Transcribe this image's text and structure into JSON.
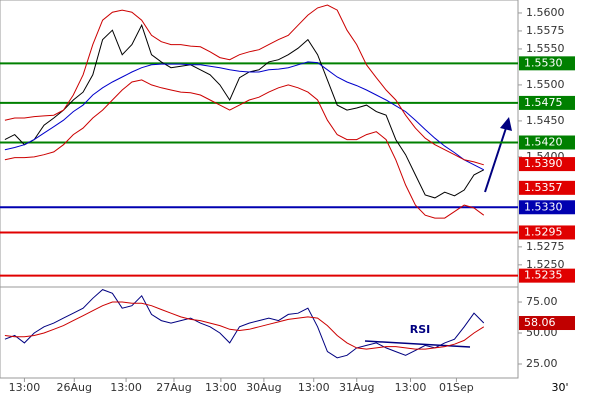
{
  "chart_data": [
    {
      "type": "line",
      "x": [
        0,
        1,
        2,
        3,
        4,
        5,
        6,
        7,
        8,
        9,
        10,
        11,
        12,
        13,
        14,
        15,
        16,
        17,
        18,
        19,
        20,
        21,
        22,
        23,
        24,
        25,
        26,
        27,
        28,
        29,
        30,
        31,
        32,
        33,
        34,
        35,
        36,
        37,
        38,
        39,
        40,
        41,
        42,
        43,
        44,
        45,
        46,
        47,
        48,
        49
      ],
      "xlim": [
        -0.5,
        52.5
      ],
      "ylim": [
        1.5222,
        1.5618
      ],
      "yticks": [
        {
          "value": 1.56,
          "label": "1.5600"
        },
        {
          "value": 1.5575,
          "label": "1.5575"
        },
        {
          "value": 1.555,
          "label": "1.5550"
        },
        {
          "value": 1.55,
          "label": "1.5500"
        },
        {
          "value": 1.545,
          "label": "1.5450"
        },
        {
          "value": 1.54,
          "label": "1.5400"
        },
        {
          "value": 1.5275,
          "label": "1.5275"
        },
        {
          "value": 1.525,
          "label": "1.5250"
        }
      ],
      "series": [
        {
          "color": "#000000",
          "values": [
            1.5424,
            1.5431,
            1.5417,
            1.5424,
            1.5444,
            1.5454,
            1.5465,
            1.5479,
            1.549,
            1.5514,
            1.5563,
            1.5576,
            1.5542,
            1.5556,
            1.5583,
            1.5542,
            1.5532,
            1.5524,
            1.5526,
            1.5528,
            1.5521,
            1.5514,
            1.55,
            1.5479,
            1.551,
            1.5518,
            1.5521,
            1.5532,
            1.5535,
            1.5542,
            1.5551,
            1.5563,
            1.5542,
            1.5507,
            1.5472,
            1.5465,
            1.5468,
            1.5472,
            1.5463,
            1.5458,
            1.5424,
            1.5403,
            1.5375,
            1.5347,
            1.5343,
            1.5351,
            1.5346,
            1.5354,
            1.5375,
            1.5382
          ]
        },
        {
          "color": "#0000cc",
          "values": [
            1.541,
            1.5413,
            1.5417,
            1.5424,
            1.5433,
            1.5442,
            1.5451,
            1.5463,
            1.5472,
            1.5486,
            1.5496,
            1.5504,
            1.5511,
            1.5518,
            1.5524,
            1.5528,
            1.5529,
            1.5529,
            1.5529,
            1.5528,
            1.5528,
            1.5526,
            1.5524,
            1.5521,
            1.5519,
            1.5518,
            1.5518,
            1.5521,
            1.5522,
            1.5524,
            1.5528,
            1.5532,
            1.5531,
            1.5521,
            1.5511,
            1.5504,
            1.5499,
            1.5493,
            1.5486,
            1.5479,
            1.5471,
            1.5463,
            1.5451,
            1.5438,
            1.5426,
            1.5415,
            1.5406,
            1.5396,
            1.5389,
            1.5382
          ]
        },
        {
          "color": "#cc0000",
          "values": [
            1.5451,
            1.5454,
            1.5454,
            1.5456,
            1.5457,
            1.5458,
            1.5465,
            1.5486,
            1.5514,
            1.5556,
            1.559,
            1.5601,
            1.5604,
            1.5601,
            1.559,
            1.5569,
            1.556,
            1.5556,
            1.5556,
            1.5554,
            1.5553,
            1.5546,
            1.5538,
            1.5535,
            1.5542,
            1.5546,
            1.5549,
            1.5556,
            1.5563,
            1.5569,
            1.5583,
            1.5597,
            1.5607,
            1.5611,
            1.5604,
            1.5576,
            1.5556,
            1.5528,
            1.551,
            1.5493,
            1.5479,
            1.5458,
            1.544,
            1.5426,
            1.5417,
            1.541,
            1.5403,
            1.5396,
            1.5393,
            1.5389
          ]
        },
        {
          "color": "#cc0000",
          "values": [
            1.5396,
            1.5399,
            1.5399,
            1.54,
            1.5403,
            1.5407,
            1.5417,
            1.5431,
            1.544,
            1.5454,
            1.5465,
            1.5479,
            1.5493,
            1.5504,
            1.5507,
            1.55,
            1.5496,
            1.5493,
            1.549,
            1.5489,
            1.5486,
            1.5479,
            1.5472,
            1.5465,
            1.5472,
            1.5479,
            1.5483,
            1.549,
            1.5496,
            1.55,
            1.5496,
            1.549,
            1.5479,
            1.5451,
            1.5431,
            1.5424,
            1.5424,
            1.5431,
            1.5435,
            1.5424,
            1.5396,
            1.5361,
            1.5333,
            1.5319,
            1.5315,
            1.5315,
            1.5324,
            1.5333,
            1.5329,
            1.5319
          ]
        }
      ],
      "levels": [
        {
          "value": 1.553,
          "label": "1.5530",
          "color": "#008000",
          "line": true
        },
        {
          "value": 1.5475,
          "label": "1.5475",
          "color": "#008000",
          "line": true
        },
        {
          "value": 1.542,
          "label": "1.5420",
          "color": "#008000",
          "line": true
        },
        {
          "value": 1.539,
          "label": "1.5390",
          "color": "#e00000",
          "line": false
        },
        {
          "value": 1.5357,
          "label": "1.5357",
          "color": "#e00000",
          "line": false
        },
        {
          "value": 1.533,
          "label": "1.5330",
          "color": "#0000b0",
          "line": true
        },
        {
          "value": 1.5295,
          "label": "1.5295",
          "color": "#e00000",
          "line": true
        },
        {
          "value": 1.5235,
          "label": "1.5235",
          "color": "#e00000",
          "line": true
        }
      ]
    },
    {
      "type": "line",
      "annotation": "RSI",
      "timeframe": "30'",
      "x": [
        0,
        1,
        2,
        3,
        4,
        5,
        6,
        7,
        8,
        9,
        10,
        11,
        12,
        13,
        14,
        15,
        16,
        17,
        18,
        19,
        20,
        21,
        22,
        23,
        24,
        25,
        26,
        27,
        28,
        29,
        30,
        31,
        32,
        33,
        34,
        35,
        36,
        37,
        38,
        39,
        40,
        41,
        42,
        43,
        44,
        45,
        46,
        47,
        48,
        49
      ],
      "xlim": [
        -0.5,
        52.5
      ],
      "xticks": [
        {
          "value": 2,
          "label": "13:00"
        },
        {
          "value": 7.1,
          "label": "26Aug"
        },
        {
          "value": 12.4,
          "label": "13:00"
        },
        {
          "value": 17.3,
          "label": "27Aug"
        },
        {
          "value": 22.1,
          "label": "13:00"
        },
        {
          "value": 26.5,
          "label": "30Aug"
        },
        {
          "value": 31.6,
          "label": "13:00"
        },
        {
          "value": 36,
          "label": "31Aug"
        },
        {
          "value": 41.5,
          "label": "13:00"
        },
        {
          "value": 46.2,
          "label": "01Sep"
        }
      ],
      "ylim": [
        13.7,
        84.7
      ],
      "yticks": [
        {
          "value": 75,
          "label": "75.00"
        },
        {
          "value": 50,
          "label": "50.00"
        },
        {
          "value": 25,
          "label": "25.00"
        }
      ],
      "series": [
        {
          "color": "#000080",
          "values": [
            45,
            48,
            42,
            50,
            55,
            58,
            62,
            66,
            70,
            78,
            85,
            82,
            70,
            72,
            80,
            65,
            60,
            58,
            60,
            62,
            58,
            55,
            50,
            42,
            55,
            58,
            60,
            62,
            60,
            65,
            66,
            70,
            55,
            35,
            30,
            32,
            38,
            40,
            42,
            38,
            35,
            32,
            36,
            40,
            38,
            42,
            45,
            55,
            66,
            58.06
          ]
        },
        {
          "color": "#cc0000",
          "values": [
            48,
            47,
            47,
            48,
            50,
            53,
            56,
            60,
            64,
            68,
            72,
            75,
            75,
            74,
            74,
            72,
            69,
            66,
            63,
            61,
            60,
            58,
            56,
            53,
            52,
            53,
            55,
            57,
            59,
            61,
            62,
            63,
            62,
            56,
            48,
            42,
            38,
            37,
            38,
            39,
            39,
            38,
            37,
            37,
            38,
            39,
            41,
            44,
            50,
            55
          ]
        }
      ],
      "current": {
        "value": 58.06,
        "label": "58.06",
        "color": "#c00000"
      }
    }
  ]
}
